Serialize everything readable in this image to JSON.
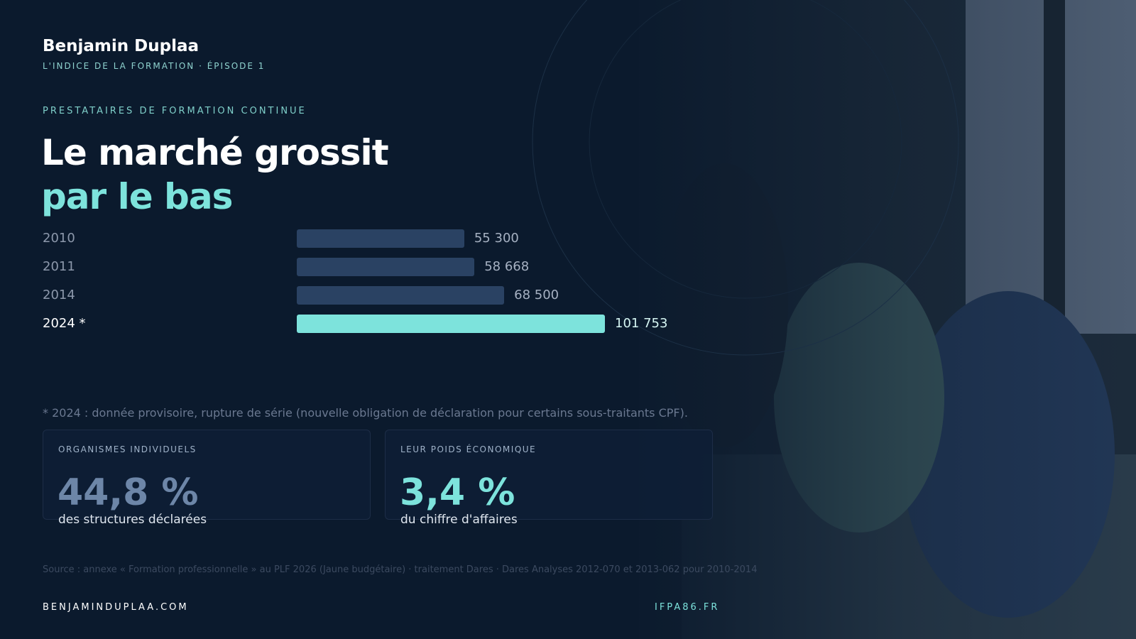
{
  "header": {
    "author": "Benjamin Duplaa",
    "series_name": "L'INDICE DE LA FORMATION · ÉPISODE 1"
  },
  "kicker": "PRESTATAIRES DE FORMATION CONTINUE",
  "title_line1": "Le marché grossit",
  "title_line2": "par le bas",
  "chart_data": {
    "type": "hbar",
    "categories": [
      "2010",
      "2011",
      "2014",
      "2024 *"
    ],
    "values": [
      55300,
      58668,
      68500,
      101753
    ],
    "value_labels": [
      "55 300",
      "58 668",
      "68 500",
      "101 753"
    ],
    "colors": [
      "#2a4263",
      "#2a4263",
      "#2a4263",
      "#7de3dc"
    ]
  },
  "footnote": "* 2024 : donnée provisoire, rupture de série (nouvelle obligation de déclaration pour certains sous-traitants CPF).",
  "cards": [
    {
      "label": "ORGANISMES INDIVIDUELS",
      "value": "44,8 %",
      "caption": "des structures déclarées"
    },
    {
      "label": "LEUR POIDS ÉCONOMIQUE",
      "value": "3,4 %",
      "caption": "du chiffre d'affaires"
    }
  ],
  "source": "Source : annexe « Formation professionnelle » au PLF 2026 (Jaune budgétaire) · traitement Dares · Dares Analyses 2012-070 et 2013-062 pour 2010-2014",
  "footer": {
    "left": "BENJAMINDUPLAA.COM",
    "right": "IFPA86.FR"
  }
}
